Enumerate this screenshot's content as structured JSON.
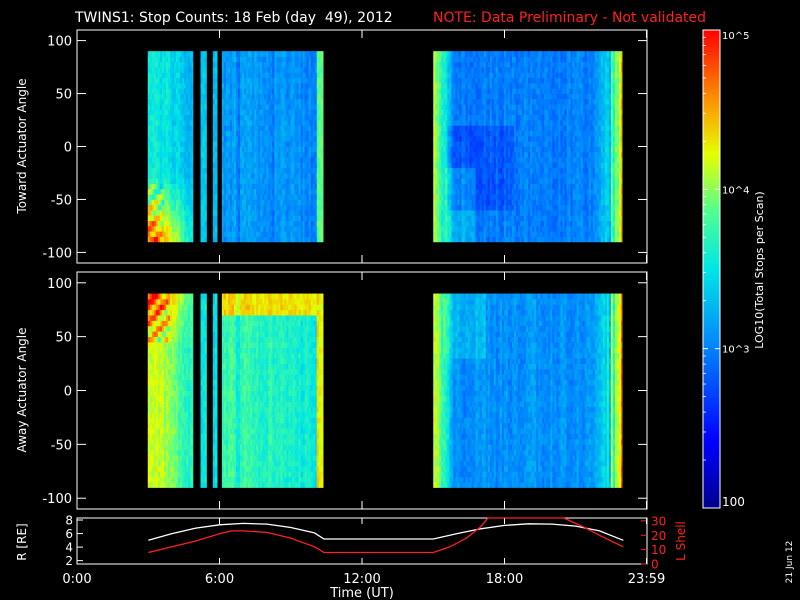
{
  "header": {
    "title": "TWINS1: Stop Counts: 18 Feb (day  49), 2012",
    "note": "NOTE: Data Preliminary - Not validated"
  },
  "side_stamp": "21 Jun 12",
  "colors": {
    "background": "#000000",
    "axis": "#ffffff",
    "note": "#ff2020",
    "l_shell": "#ff2020",
    "r_line": "#ffffff"
  },
  "colorbar": {
    "label": "LOG10(Total Stops per Scan)",
    "tick_labels": [
      "10^5",
      "10^4",
      "10^3",
      "100"
    ],
    "log_min": 2,
    "log_max": 5
  },
  "chart_data": [
    {
      "type": "heatmap",
      "name": "toward",
      "ylabel": "Toward Actuator Angle",
      "yticks": [
        100,
        50,
        0,
        -50,
        -100
      ],
      "ylim": [
        -110,
        110
      ],
      "xlim": [
        0,
        24
      ],
      "angle_range": [
        -90,
        90
      ],
      "data_blocks_hours": [
        [
          2.98,
          4.88
        ],
        [
          5.2,
          5.45
        ],
        [
          5.72,
          5.9
        ],
        [
          6.1,
          10.36
        ],
        [
          15.0,
          22.95
        ]
      ],
      "colorscale": "log10 stops per scan, 100 to 10^5"
    },
    {
      "type": "heatmap",
      "name": "away",
      "ylabel": "Away Actuator Angle",
      "yticks": [
        100,
        50,
        0,
        -50,
        -100
      ],
      "ylim": [
        -110,
        110
      ],
      "xlim": [
        0,
        24
      ],
      "angle_range": [
        -90,
        90
      ],
      "data_blocks_hours": [
        [
          2.98,
          4.88
        ],
        [
          5.2,
          5.45
        ],
        [
          5.72,
          5.9
        ],
        [
          6.1,
          10.36
        ],
        [
          15.0,
          22.95
        ]
      ],
      "colorscale": "log10 stops per scan, 100 to 10^5"
    },
    {
      "type": "line",
      "name": "orbit",
      "xlabel": "Time (UT)",
      "xtick_labels": [
        "0:00",
        "6:00",
        "12:00",
        "18:00",
        "23:59"
      ],
      "xticks_hours": [
        0,
        6,
        12,
        18,
        23.98
      ],
      "xlim": [
        0,
        24
      ],
      "left_axis": {
        "label": "R [RE]",
        "ticks": [
          2,
          4,
          6,
          8
        ],
        "ylim": [
          1.5,
          8.3
        ]
      },
      "right_axis": {
        "label": "L Shell",
        "ticks": [
          0,
          10,
          20,
          30
        ],
        "ylim": [
          0,
          32
        ]
      },
      "series": [
        {
          "name": "R [RE]",
          "axis": "left",
          "x": [
            3,
            4,
            5,
            6,
            7,
            8,
            9,
            10,
            10.4,
            12,
            14,
            15,
            16,
            17,
            18,
            19,
            20,
            21,
            22,
            23
          ],
          "y": [
            5.0,
            6.0,
            6.8,
            7.3,
            7.5,
            7.4,
            6.9,
            6.1,
            5.2,
            5.2,
            5.2,
            5.2,
            6.0,
            6.7,
            7.2,
            7.45,
            7.4,
            7.1,
            6.4,
            5.0
          ]
        },
        {
          "name": "L Shell",
          "axis": "right",
          "x": [
            3,
            4,
            5,
            6,
            6.5,
            7,
            8,
            9,
            10,
            10.4,
            12,
            14,
            15,
            15.7,
            16.4,
            17,
            17.3,
            20.5,
            21.3,
            22,
            23
          ],
          "y": [
            8,
            12,
            16,
            21,
            23,
            23,
            22,
            18,
            12,
            8,
            8,
            8,
            8,
            12,
            18,
            26,
            32,
            32,
            26,
            20,
            12
          ]
        }
      ]
    }
  ]
}
